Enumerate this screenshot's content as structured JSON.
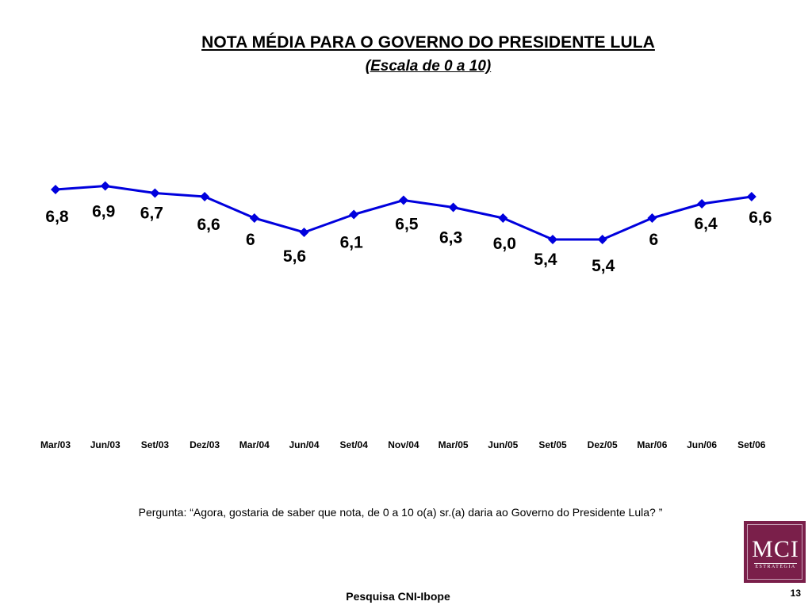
{
  "chart_data": {
    "type": "line",
    "title": "NOTA MÉDIA PARA O GOVERNO DO PRESIDENTE LULA",
    "subtitle": "(Escala de 0 a 10)",
    "categories": [
      "Mar/03",
      "Jun/03",
      "Set/03",
      "Dez/03",
      "Mar/04",
      "Jun/04",
      "Set/04",
      "Nov/04",
      "Mar/05",
      "Jun/05",
      "Set/05",
      "Dez/05",
      "Mar/06",
      "Jun/06",
      "Set/06"
    ],
    "values": [
      6.8,
      6.9,
      6.7,
      6.6,
      6.0,
      5.6,
      6.1,
      6.5,
      6.3,
      6.0,
      5.4,
      5.4,
      6.0,
      6.4,
      6.6
    ],
    "value_labels": [
      "6,8",
      "6,9",
      "6,7",
      "6,6",
      "6",
      "5,6",
      "6,1",
      "6,5",
      "6,3",
      "6,0",
      "5,4",
      "5,4",
      "6",
      "6,4",
      "6,6"
    ],
    "series_color": "#0000dd",
    "grid": false,
    "legend": "none"
  },
  "question": "Pergunta: “Agora, gostaria de saber que nota, de 0 a 10 o(a) sr.(a) daria ao Governo do Presidente Lula? ”",
  "source": "Pesquisa CNI-Ibope",
  "page_number": "13",
  "logo": {
    "name": "MCI",
    "tagline": "ESTRATÉGIA",
    "color": "#7a1f4a"
  }
}
